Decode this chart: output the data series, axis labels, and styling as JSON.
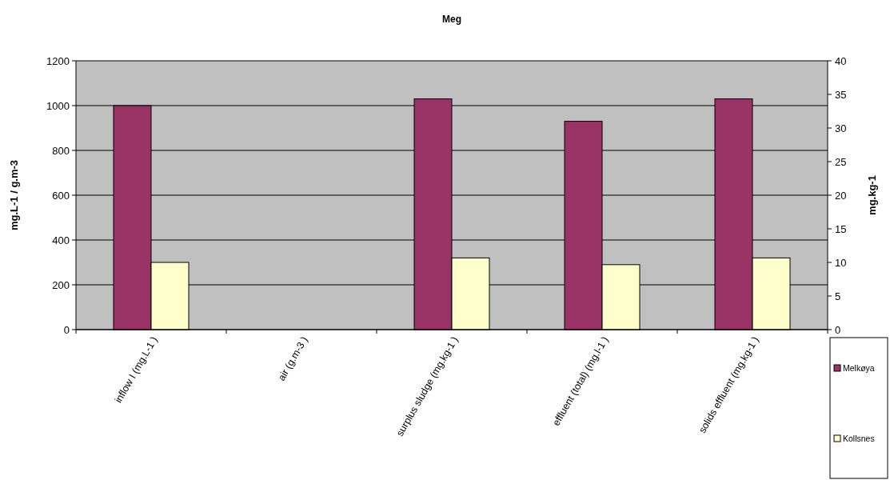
{
  "chart_data": {
    "type": "bar",
    "title": "Meg",
    "ylabel": "mg.L-1 / g.m-3",
    "y2label": "mg.kg-1",
    "categories": [
      "inflow I  (mg.L-1 )",
      "air (g.m-3 )",
      "surplus sludge (mg.kg-1 )",
      "effluent (total) (mg.l-1 )",
      "solids effluent (mg.kg-1 )"
    ],
    "series": [
      {
        "name": "Melkøya",
        "color": "#993366",
        "values": [
          1000,
          null,
          1030,
          930,
          1030
        ]
      },
      {
        "name": "Kollsnes",
        "color": "#ffffcc",
        "values": [
          300,
          null,
          320,
          290,
          320
        ]
      }
    ],
    "ylim": [
      0,
      1200
    ],
    "yticks": [
      0,
      200,
      400,
      600,
      800,
      1000,
      1200
    ],
    "y2lim": [
      0,
      40
    ],
    "y2ticks": [
      0,
      5,
      10,
      15,
      20,
      25,
      30,
      35,
      40
    ],
    "grid": "y",
    "legend": "right"
  }
}
